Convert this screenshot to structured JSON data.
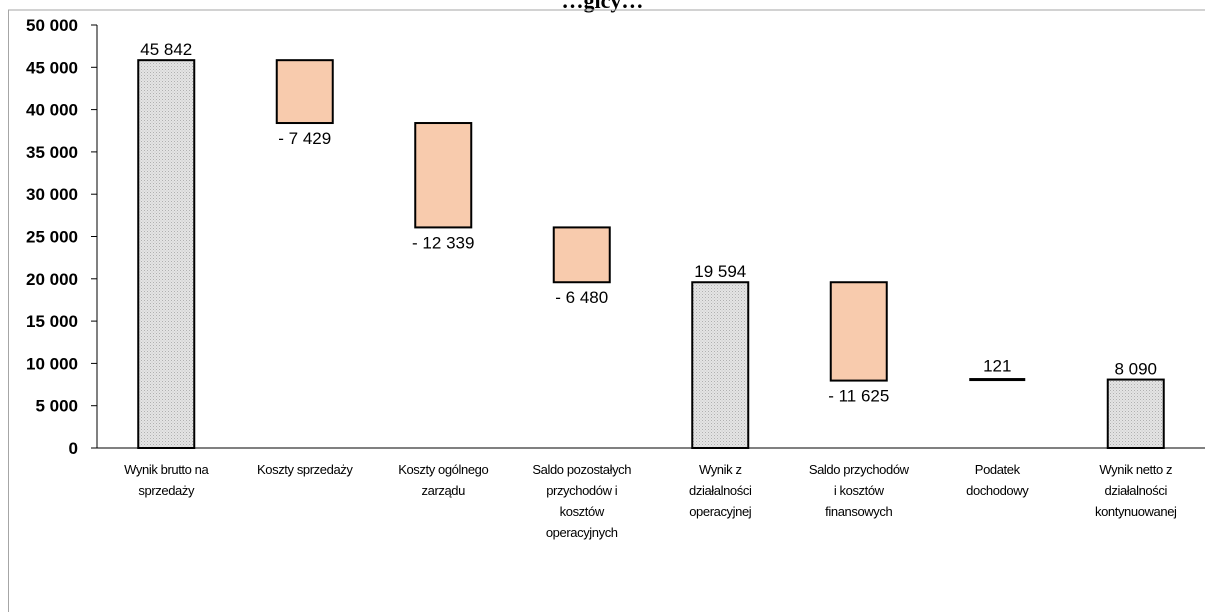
{
  "chart_data": {
    "type": "bar",
    "subtype": "waterfall",
    "title": "…gicy…",
    "ylim": [
      0,
      50000
    ],
    "yticks": [
      0,
      5000,
      10000,
      15000,
      20000,
      25000,
      30000,
      35000,
      40000,
      45000,
      50000
    ],
    "ytick_labels": [
      "0",
      "5 000",
      "10 000",
      "15 000",
      "20 000",
      "25 000",
      "30 000",
      "35 000",
      "40 000",
      "45 000",
      "50 000"
    ],
    "grid": false,
    "legend": "none",
    "categories": [
      [
        "Wynik brutto na",
        "sprzedaży"
      ],
      [
        "Koszty sprzedaży"
      ],
      [
        "Koszty ogólnego",
        "zarządu"
      ],
      [
        "Saldo pozostałych",
        "przychodów i",
        "kosztów",
        "operacyjnych"
      ],
      [
        "Wynik z",
        "działalności",
        "operacyjnej"
      ],
      [
        "Saldo przychodów",
        "i kosztów",
        "finansowych"
      ],
      [
        "Podatek",
        "dochodowy"
      ],
      [
        "Wynik netto z",
        "działalności",
        "kontynuowanej"
      ]
    ],
    "bars": [
      {
        "kind": "total",
        "start": 0,
        "end": 45842,
        "label": "45 842"
      },
      {
        "kind": "decrease",
        "start": 45842,
        "end": 38413,
        "label": "- 7 429"
      },
      {
        "kind": "decrease",
        "start": 38413,
        "end": 26074,
        "label": "- 12 339"
      },
      {
        "kind": "decrease",
        "start": 26074,
        "end": 19594,
        "label": "- 6 480"
      },
      {
        "kind": "total",
        "start": 0,
        "end": 19594,
        "label": "19 594"
      },
      {
        "kind": "decrease",
        "start": 19594,
        "end": 7969,
        "label": "- 11 625"
      },
      {
        "kind": "increase",
        "start": 7969,
        "end": 8090,
        "label": "121"
      },
      {
        "kind": "total",
        "start": 0,
        "end": 8090,
        "label": "8 090"
      }
    ],
    "colors": {
      "total": "#d9d9d9",
      "decrease": "#f8cbad",
      "increase": "#000000",
      "outline": "#000000"
    }
  }
}
